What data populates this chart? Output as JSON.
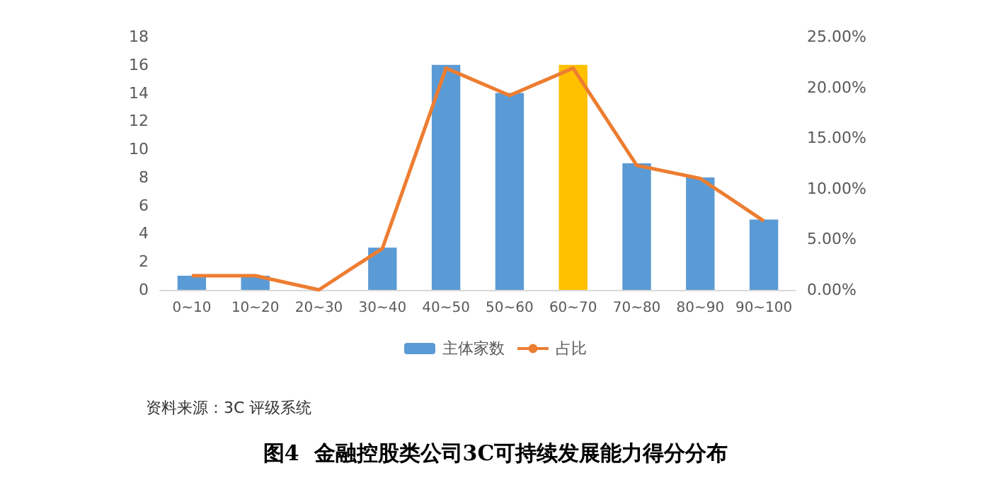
{
  "chart_data": {
    "type": "bar",
    "title": "图4  金融控股类公司3C可持续发展能力得分分布",
    "annotations": [
      "资料来源：3C 评级系统"
    ],
    "categories": [
      "0~10",
      "10~20",
      "20~30",
      "30~40",
      "40~50",
      "50~60",
      "60~70",
      "70~80",
      "80~90",
      "90~100"
    ],
    "series": [
      {
        "name": "主体家数",
        "color": "#5b9bd5",
        "colors": [
          "#5b9bd5",
          "#5b9bd5",
          "#5b9bd5",
          "#5b9bd5",
          "#5b9bd5",
          "#5b9bd5",
          "#ffc000",
          "#5b9bd5",
          "#5b9bd5",
          "#5b9bd5"
        ],
        "values": [
          1,
          1,
          0,
          3,
          16,
          14,
          16,
          9,
          8,
          5
        ]
      },
      {
        "name": "占比",
        "type": "line",
        "axis": "y2",
        "color": "#ed7d31",
        "values": [
          1.4,
          1.4,
          0,
          4.1,
          21.9,
          19.2,
          21.9,
          12.3,
          11.0,
          6.8
        ]
      }
    ],
    "ylim": [
      0,
      18
    ],
    "yticks": [
      0,
      2,
      4,
      6,
      8,
      10,
      12,
      14,
      16,
      18
    ],
    "y2lim": [
      0,
      25
    ],
    "y2ticks": [
      {
        "value": 0,
        "label": "0.00%"
      },
      {
        "value": 5,
        "label": "5.00%"
      },
      {
        "value": 10,
        "label": "10.00%"
      },
      {
        "value": 15,
        "label": "15.00%"
      },
      {
        "value": 20,
        "label": "20.00%"
      },
      {
        "value": 25,
        "label": "25.00%"
      }
    ],
    "legend": "bottom",
    "marker": "none",
    "grid": false
  }
}
